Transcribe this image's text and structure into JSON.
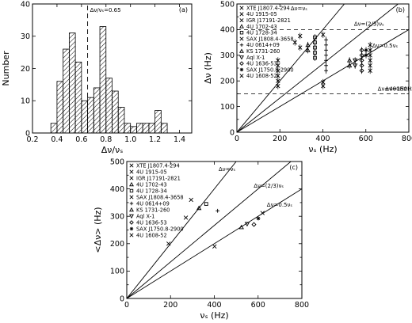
{
  "chart_data": [
    {
      "id": "a",
      "panel_label": "(a)",
      "type": "bar",
      "hatched": true,
      "xlabel": "Δν/νₛ",
      "ylabel": "Number",
      "xlim": [
        0.2,
        1.5
      ],
      "ylim": [
        0,
        40
      ],
      "xticks": [
        0.2,
        0.4,
        0.6,
        0.8,
        1.0,
        1.2,
        1.4
      ],
      "yticks": [
        0,
        10,
        20,
        30,
        40
      ],
      "xtick_labels": [
        "0.2",
        "0.4",
        "0.6",
        "0.8",
        "1.0",
        "1.2",
        "1.4"
      ],
      "ytick_labels": [
        "0",
        "10",
        "20",
        "30",
        "40"
      ],
      "bin_width": 0.05,
      "bins_left": [
        0.35,
        0.4,
        0.45,
        0.5,
        0.55,
        0.6,
        0.65,
        0.7,
        0.75,
        0.8,
        0.85,
        0.9,
        0.95,
        1.0,
        1.05,
        1.1,
        1.15,
        1.2,
        1.25
      ],
      "counts": [
        3,
        16,
        26,
        31,
        22,
        10,
        11,
        14,
        33,
        17,
        13,
        8,
        3,
        2,
        3,
        3,
        3,
        7,
        3
      ],
      "vline": {
        "x": 0.65,
        "label": "Δν/νₛ=0.65"
      }
    },
    {
      "id": "b",
      "panel_label": "(b)",
      "type": "scatter",
      "xlabel": "νₛ (Hz)",
      "ylabel": "Δν (Hz)",
      "xlim": [
        0,
        800
      ],
      "ylim": [
        0,
        500
      ],
      "xticks": [
        0,
        200,
        400,
        600,
        800
      ],
      "yticks": [
        0,
        50,
        100,
        150,
        200,
        250,
        300,
        350,
        400,
        450,
        500
      ],
      "xtick_labels": [
        "0",
        "200",
        "400",
        "600",
        "800"
      ],
      "ytick_labels": [
        "0",
        "",
        "100",
        "",
        "200",
        "",
        "300",
        "",
        "400",
        "",
        "500"
      ],
      "legend": [
        "XTE J1807.4-294",
        "4U 1915-05",
        "IGR J17191-2821",
        "4U 1702-43",
        "4U 1728-34",
        "SAX J1808.4-3658",
        "4U 0614+09",
        "KS 1731-260",
        "Aql X-1",
        "4U 1636-53",
        "SAX J1750.8-2900",
        "4U 1608-52"
      ],
      "lines": [
        {
          "label": "Δν=νₛ",
          "slope": 1.0
        },
        {
          "label": "Δν=(2/3)νₛ",
          "slope": 0.6667
        },
        {
          "label": "Δν=0.5νₛ",
          "slope": 0.5
        }
      ],
      "hlines": [
        {
          "label": "Δν=400Hz",
          "y": 400
        },
        {
          "label": "Δν=150Hz",
          "y": 150
        }
      ],
      "series": [
        {
          "name": "XTE J1807.4-294",
          "marker": "x",
          "points": [
            [
              191,
              180
            ],
            [
              191,
              200
            ],
            [
              191,
              220
            ],
            [
              191,
              240
            ],
            [
              191,
              260
            ],
            [
              191,
              280
            ]
          ]
        },
        {
          "name": "4U 1915-05",
          "marker": "x",
          "points": [
            [
              270,
              350
            ]
          ]
        },
        {
          "name": "IGR J17191-2821",
          "marker": "x",
          "points": [
            [
              294,
              330
            ],
            [
              294,
              375
            ]
          ]
        },
        {
          "name": "4U 1702-43",
          "marker": "triangle",
          "points": [
            [
              330,
              320
            ],
            [
              330,
              340
            ]
          ]
        },
        {
          "name": "4U 1728-34",
          "marker": "square",
          "points": [
            [
              363,
              310
            ],
            [
              363,
              330
            ],
            [
              363,
              350
            ],
            [
              363,
              370
            ],
            [
              363,
              290
            ]
          ]
        },
        {
          "name": "SAX J1808.4-3658",
          "marker": "x",
          "points": [
            [
              401,
              180
            ],
            [
              401,
              195
            ],
            [
              401,
              380
            ]
          ]
        },
        {
          "name": "4U 0614+09",
          "marker": "plus",
          "points": [
            [
              415,
              240
            ],
            [
              415,
              260
            ],
            [
              415,
              280
            ],
            [
              415,
              300
            ],
            [
              415,
              320
            ],
            [
              415,
              340
            ],
            [
              415,
              360
            ]
          ]
        },
        {
          "name": "KS 1731-260",
          "marker": "triangle",
          "points": [
            [
              524,
              260
            ],
            [
              524,
              280
            ]
          ]
        },
        {
          "name": "Aql X-1",
          "marker": "triangle-down",
          "points": [
            [
              550,
              280
            ],
            [
              550,
              260
            ]
          ]
        },
        {
          "name": "4U 1636-53",
          "marker": "diamond",
          "points": [
            [
              581,
              240
            ],
            [
              581,
              260
            ],
            [
              581,
              280
            ],
            [
              581,
              300
            ],
            [
              581,
              320
            ]
          ]
        },
        {
          "name": "SAX J1750.8-2900",
          "marker": "star",
          "points": [
            [
              601,
              300
            ],
            [
              601,
              320
            ]
          ]
        },
        {
          "name": "4U 1608-52",
          "marker": "x",
          "points": [
            [
              620,
              240
            ],
            [
              620,
              260
            ],
            [
              620,
              280
            ],
            [
              620,
              300
            ],
            [
              620,
              320
            ],
            [
              620,
              340
            ]
          ]
        }
      ]
    },
    {
      "id": "c",
      "panel_label": "(c)",
      "type": "scatter",
      "xlabel": "νₛ (Hz)",
      "ylabel": "<Δν> (Hz)",
      "xlim": [
        0,
        800
      ],
      "ylim": [
        0,
        500
      ],
      "xticks": [
        0,
        200,
        400,
        600,
        800
      ],
      "yticks": [
        0,
        50,
        100,
        150,
        200,
        250,
        300,
        350,
        400,
        450,
        500
      ],
      "xtick_labels": [
        "0",
        "200",
        "400",
        "600",
        "800"
      ],
      "ytick_labels": [
        "0",
        "",
        "100",
        "",
        "200",
        "",
        "300",
        "",
        "400",
        "",
        "500"
      ],
      "legend": [
        "XTE J1807.4-294",
        "4U 1915-05",
        "IGR J17191-2821",
        "4U 1702-43",
        "4U 1728-34",
        "SAX J1808.4-3658",
        "4U 0614+09",
        "KS 1731-260",
        "Aql X-1",
        "4U 1636-53",
        "SAX J1750.8-2900",
        "4U 1608-52"
      ],
      "lines": [
        {
          "label": "Δν=νₛ",
          "slope": 1.0
        },
        {
          "label": "Δν=(2/3)νₛ",
          "slope": 0.6667
        },
        {
          "label": "Δν=0.5νₛ",
          "slope": 0.5
        }
      ],
      "series": [
        {
          "name": "XTE J1807.4-294",
          "marker": "x",
          "points": [
            [
              191,
              200
            ]
          ]
        },
        {
          "name": "4U 1915-05",
          "marker": "x",
          "points": [
            [
              270,
              295
            ]
          ]
        },
        {
          "name": "IGR J17191-2821",
          "marker": "x",
          "points": [
            [
              294,
              360
            ]
          ]
        },
        {
          "name": "4U 1702-43",
          "marker": "triangle",
          "points": [
            [
              330,
              330
            ]
          ]
        },
        {
          "name": "4U 1728-34",
          "marker": "square",
          "points": [
            [
              363,
              345
            ]
          ]
        },
        {
          "name": "SAX J1808.4-3658",
          "marker": "x",
          "points": [
            [
              401,
              190
            ]
          ]
        },
        {
          "name": "4U 0614+09",
          "marker": "plus",
          "points": [
            [
              415,
              320
            ]
          ]
        },
        {
          "name": "KS 1731-260",
          "marker": "triangle",
          "points": [
            [
              524,
              260
            ]
          ]
        },
        {
          "name": "Aql X-1",
          "marker": "triangle-down",
          "points": [
            [
              550,
              272
            ]
          ]
        },
        {
          "name": "4U 1636-53",
          "marker": "diamond",
          "points": [
            [
              581,
              270
            ]
          ]
        },
        {
          "name": "SAX J1750.8-2900",
          "marker": "star",
          "points": [
            [
              601,
              292
            ]
          ]
        },
        {
          "name": "4U 1608-52",
          "marker": "x",
          "points": [
            [
              620,
              312
            ]
          ]
        }
      ]
    }
  ]
}
